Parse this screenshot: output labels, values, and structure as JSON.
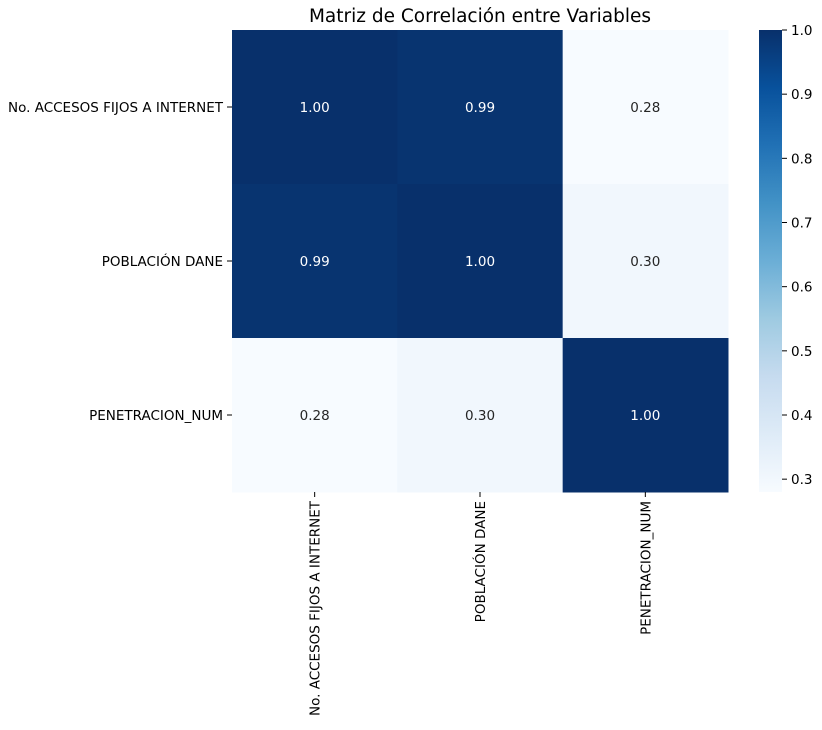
{
  "chart_data": {
    "type": "heatmap",
    "title": "Matriz de Correlación entre Variables",
    "x_categories": [
      "No. ACCESOS FIJOS A INTERNET",
      "POBLACIÓN DANE",
      "PENETRACION_NUM"
    ],
    "y_categories": [
      "No. ACCESOS FIJOS A INTERNET",
      "POBLACIÓN DANE",
      "PENETRACION_NUM"
    ],
    "values": [
      [
        1.0,
        0.99,
        0.28
      ],
      [
        0.99,
        1.0,
        0.3
      ],
      [
        0.28,
        0.3,
        1.0
      ]
    ],
    "annotations": [
      [
        "1.00",
        "0.99",
        "0.28"
      ],
      [
        "0.99",
        "1.00",
        "0.30"
      ],
      [
        "0.28",
        "0.30",
        "1.00"
      ]
    ],
    "colormap": "Blues",
    "colorbar": {
      "min": 0.28,
      "max": 1.0,
      "ticks": [
        1.0,
        0.9,
        0.8,
        0.7,
        0.6,
        0.5,
        0.4,
        0.3
      ],
      "tick_labels": [
        "1.0",
        "0.9",
        "0.8",
        "0.7",
        "0.6",
        "0.5",
        "0.4",
        "0.3"
      ],
      "placement": "right"
    },
    "colors": {
      "low": "#f7fbff",
      "high": "#08306b"
    }
  }
}
